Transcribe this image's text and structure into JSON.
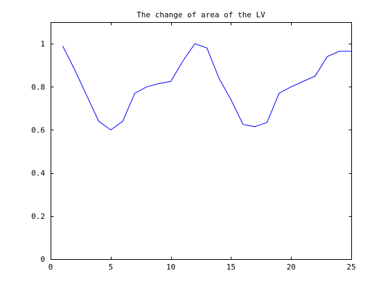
{
  "chart_data": {
    "type": "line",
    "title": "The change of area of the LV",
    "xlabel": "",
    "ylabel": "",
    "xlim": [
      0,
      25
    ],
    "ylim": [
      0,
      1.1
    ],
    "xticks": [
      0,
      5,
      10,
      15,
      20,
      25
    ],
    "yticks": [
      0,
      0.2,
      0.4,
      0.6,
      0.8,
      1
    ],
    "ytick_labels": [
      "0",
      "0.2",
      "0.4",
      "0.6",
      "0.8",
      "1"
    ],
    "grid": false,
    "series": [
      {
        "color": "#0000ff",
        "x": [
          1,
          2,
          3,
          4,
          5,
          6,
          7,
          8,
          9,
          10,
          11,
          12,
          13,
          14,
          15,
          16,
          17,
          18,
          19,
          20,
          21,
          22,
          23,
          24,
          25
        ],
        "y": [
          0.99,
          0.88,
          0.76,
          0.64,
          0.6,
          0.64,
          0.77,
          0.8,
          0.815,
          0.825,
          0.92,
          1.0,
          0.98,
          0.84,
          0.74,
          0.625,
          0.615,
          0.635,
          0.77,
          0.8,
          0.825,
          0.85,
          0.94,
          0.965,
          0.965
        ]
      }
    ]
  }
}
